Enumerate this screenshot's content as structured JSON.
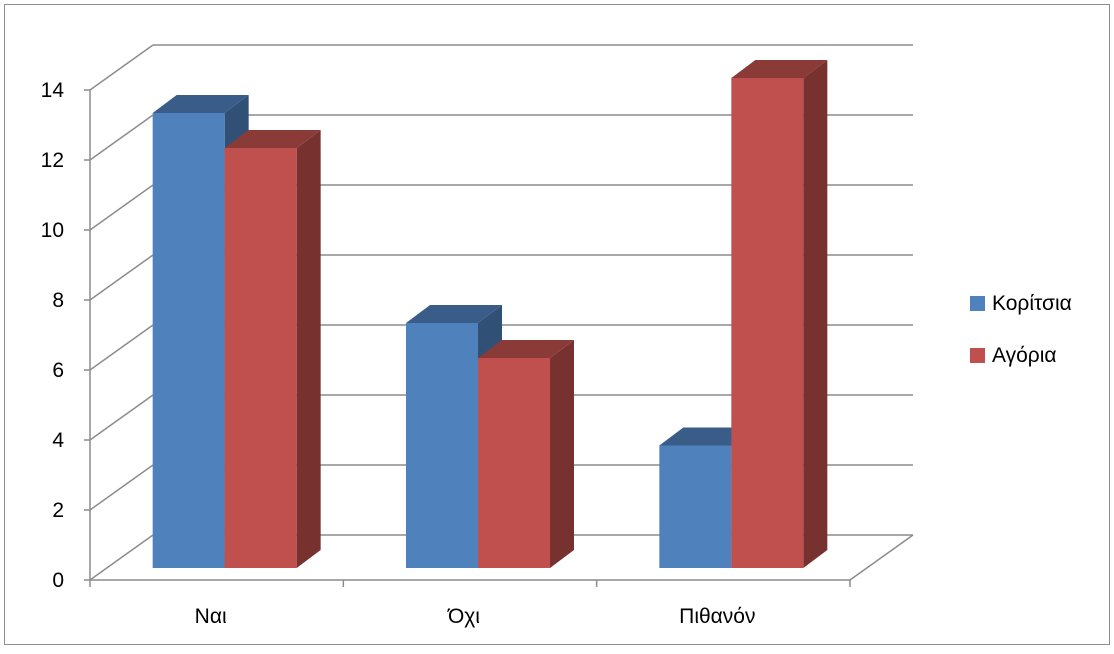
{
  "chart_data": {
    "type": "bar",
    "categories": [
      "Ναι",
      "Όχι",
      "Πιθανόν"
    ],
    "series": [
      {
        "name": "Κορίτσια",
        "values": [
          13,
          7,
          3.5
        ],
        "color": "#4F81BD"
      },
      {
        "name": "Αγόρια",
        "values": [
          12,
          6,
          14
        ],
        "color": "#C0504D"
      }
    ],
    "title": "",
    "xlabel": "",
    "ylabel": "",
    "ylim": [
      0,
      14
    ],
    "y_ticks": [
      0,
      2,
      4,
      6,
      8,
      10,
      12,
      14
    ],
    "grid": true,
    "legend_position": "right",
    "style": "3d-clustered-column"
  }
}
